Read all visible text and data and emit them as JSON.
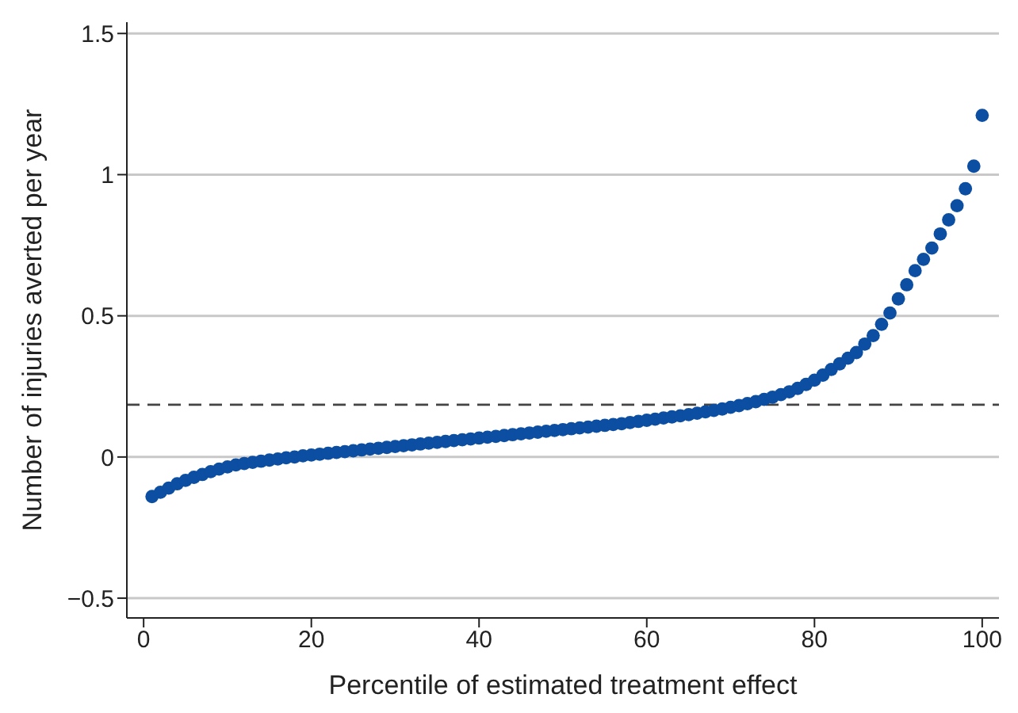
{
  "chart_data": {
    "type": "scatter",
    "xlabel": "Percentile of estimated treatment effect",
    "ylabel": "Number of injuries averted per year",
    "x": [
      1,
      2,
      3,
      4,
      5,
      6,
      7,
      8,
      9,
      10,
      11,
      12,
      13,
      14,
      15,
      16,
      17,
      18,
      19,
      20,
      21,
      22,
      23,
      24,
      25,
      26,
      27,
      28,
      29,
      30,
      31,
      32,
      33,
      34,
      35,
      36,
      37,
      38,
      39,
      40,
      41,
      42,
      43,
      44,
      45,
      46,
      47,
      48,
      49,
      50,
      51,
      52,
      53,
      54,
      55,
      56,
      57,
      58,
      59,
      60,
      61,
      62,
      63,
      64,
      65,
      66,
      67,
      68,
      69,
      70,
      71,
      72,
      73,
      74,
      75,
      76,
      77,
      78,
      79,
      80,
      81,
      82,
      83,
      84,
      85,
      86,
      87,
      88,
      89,
      90,
      91,
      92,
      93,
      94,
      95,
      96,
      97,
      98,
      99,
      100
    ],
    "series": [
      {
        "color": "#0b4ea2",
        "values": [
          -0.14,
          -0.125,
          -0.11,
          -0.095,
          -0.083,
          -0.072,
          -0.062,
          -0.052,
          -0.043,
          -0.035,
          -0.028,
          -0.023,
          -0.019,
          -0.015,
          -0.011,
          -0.007,
          -0.003,
          0.0,
          0.004,
          0.007,
          0.01,
          0.013,
          0.016,
          0.019,
          0.022,
          0.025,
          0.028,
          0.031,
          0.034,
          0.037,
          0.04,
          0.043,
          0.046,
          0.049,
          0.052,
          0.055,
          0.058,
          0.061,
          0.064,
          0.067,
          0.07,
          0.073,
          0.076,
          0.079,
          0.082,
          0.085,
          0.088,
          0.091,
          0.094,
          0.097,
          0.1,
          0.103,
          0.106,
          0.109,
          0.112,
          0.115,
          0.118,
          0.122,
          0.126,
          0.13,
          0.134,
          0.138,
          0.142,
          0.146,
          0.15,
          0.155,
          0.16,
          0.165,
          0.17,
          0.176,
          0.182,
          0.189,
          0.196,
          0.204,
          0.212,
          0.221,
          0.231,
          0.243,
          0.257,
          0.272,
          0.29,
          0.31,
          0.33,
          0.35,
          0.37,
          0.4,
          0.43,
          0.47,
          0.51,
          0.56,
          0.61,
          0.66,
          0.7,
          0.74,
          0.79,
          0.84,
          0.89,
          0.95,
          1.03,
          1.21
        ]
      }
    ],
    "xlim": [
      -2,
      102
    ],
    "xticks": [
      0,
      20,
      40,
      60,
      80,
      100
    ],
    "ylim": [
      -0.57,
      1.54
    ],
    "yticks": [
      {
        "value": -0.5,
        "label": "−0.5"
      },
      0,
      0.5,
      1,
      1.5
    ],
    "ref_lines": [
      {
        "axis": "y",
        "value": 0.185,
        "color": "#444444",
        "line_style": "dashed"
      }
    ],
    "grid": "y",
    "marker": "circle",
    "legend": false
  }
}
